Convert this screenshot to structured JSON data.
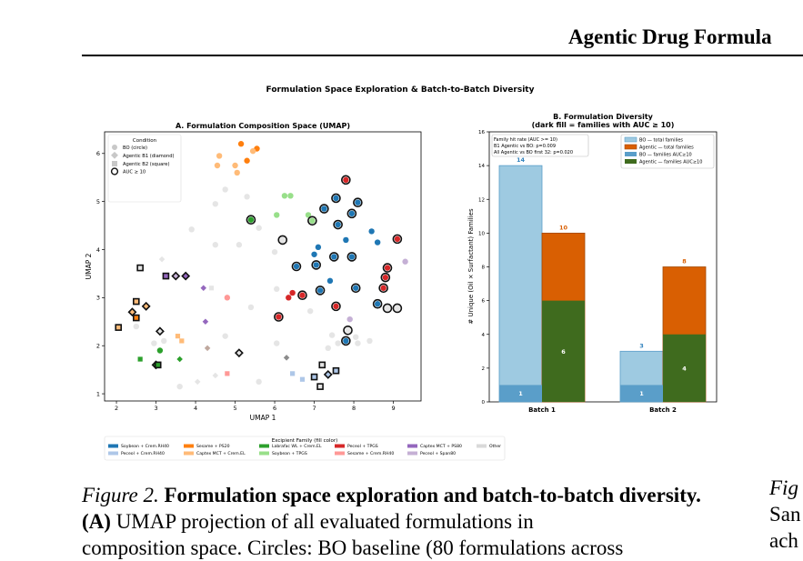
{
  "header": {
    "running_title": "Agentic Drug Formula"
  },
  "figure": {
    "suptitle": "Formulation Space Exploration & Batch-to-Batch Diversity",
    "legend": {
      "title": "Excipient Family (fill color)",
      "items": [
        {
          "label": "Soybean + Crem.RH40",
          "color": "#1f77b4"
        },
        {
          "label": "Peceol + Crem.RH40",
          "color": "#aec7e8"
        },
        {
          "label": "Sesame + PS20",
          "color": "#ff7f0e"
        },
        {
          "label": "Captex MCT + Crem.EL",
          "color": "#ffbb78"
        },
        {
          "label": "Labrafac WL + Crem.EL",
          "color": "#2ca02c"
        },
        {
          "label": "Soybean + TPGS",
          "color": "#98df8a"
        },
        {
          "label": "Peceol + TPGS",
          "color": "#d62728"
        },
        {
          "label": "Sesame + Crem.RH40",
          "color": "#ff9896"
        },
        {
          "label": "Captex MCT + PS80",
          "color": "#9467bd"
        },
        {
          "label": "Peceol + Span80",
          "color": "#c5b0d5"
        },
        {
          "label": "Other",
          "color": "#d9d9d9"
        }
      ]
    }
  },
  "chart_data": [
    {
      "type": "scatter",
      "title": "A. Formulation Composition Space (UMAP)",
      "xlabel": "UMAP 1",
      "ylabel": "UMAP 2",
      "xlim": [
        1.7,
        9.7
      ],
      "ylim": [
        0.85,
        6.45
      ],
      "xticks": [
        "2",
        "3",
        "4",
        "5",
        "6",
        "7",
        "8",
        "9"
      ],
      "yticks": [
        "1",
        "2",
        "3",
        "4",
        "5",
        "6"
      ],
      "legend": {
        "title": "Condition",
        "placement": "top-left",
        "entries": [
          "BO (circle)",
          "Agentic B1 (diamond)",
          "Agentic B2 (square)",
          "AUC ≥ 10"
        ]
      },
      "points": [
        {
          "x": 4.6,
          "y": 5.95,
          "m": "c",
          "c": "#ffbb78",
          "h": 0
        },
        {
          "x": 5.15,
          "y": 6.2,
          "m": "c",
          "c": "#ff7f0e",
          "h": 0
        },
        {
          "x": 5.55,
          "y": 6.1,
          "m": "c",
          "c": "#ff7f0e",
          "h": 0
        },
        {
          "x": 5.45,
          "y": 6.05,
          "m": "c",
          "c": "#ffbb78",
          "h": 0
        },
        {
          "x": 5.0,
          "y": 5.75,
          "m": "c",
          "c": "#ffbb78",
          "h": 0
        },
        {
          "x": 5.3,
          "y": 5.85,
          "m": "c",
          "c": "#ff7f0e",
          "h": 0
        },
        {
          "x": 4.55,
          "y": 5.75,
          "m": "c",
          "c": "#ffbb78",
          "h": 0
        },
        {
          "x": 5.05,
          "y": 5.6,
          "m": "c",
          "c": "#ffbb78",
          "h": 0
        },
        {
          "x": 4.75,
          "y": 5.25,
          "m": "c",
          "c": "#e5e5e5",
          "h": 0
        },
        {
          "x": 5.3,
          "y": 5.1,
          "m": "c",
          "c": "#e5e5e5",
          "h": 0
        },
        {
          "x": 4.5,
          "y": 4.95,
          "m": "c",
          "c": "#e5e5e5",
          "h": 0
        },
        {
          "x": 5.4,
          "y": 4.62,
          "m": "c",
          "c": "#2ca02c",
          "h": 1
        },
        {
          "x": 6.25,
          "y": 5.12,
          "m": "c",
          "c": "#98df8a",
          "h": 0
        },
        {
          "x": 6.4,
          "y": 5.12,
          "m": "c",
          "c": "#98df8a",
          "h": 0
        },
        {
          "x": 6.05,
          "y": 4.72,
          "m": "c",
          "c": "#98df8a",
          "h": 0
        },
        {
          "x": 6.85,
          "y": 4.72,
          "m": "c",
          "c": "#98df8a",
          "h": 0
        },
        {
          "x": 5.6,
          "y": 4.45,
          "m": "c",
          "c": "#e5e5e5",
          "h": 0
        },
        {
          "x": 3.9,
          "y": 4.42,
          "m": "c",
          "c": "#e5e5e5",
          "h": 0
        },
        {
          "x": 7.8,
          "y": 5.45,
          "m": "c",
          "c": "#d62728",
          "h": 1
        },
        {
          "x": 7.55,
          "y": 5.07,
          "m": "c",
          "c": "#1f77b4",
          "h": 1
        },
        {
          "x": 8.1,
          "y": 4.98,
          "m": "c",
          "c": "#1f77b4",
          "h": 1
        },
        {
          "x": 7.25,
          "y": 4.85,
          "m": "c",
          "c": "#1f77b4",
          "h": 1
        },
        {
          "x": 7.95,
          "y": 4.75,
          "m": "c",
          "c": "#1f77b4",
          "h": 1
        },
        {
          "x": 6.95,
          "y": 4.6,
          "m": "c",
          "c": "#98df8a",
          "h": 1
        },
        {
          "x": 7.6,
          "y": 4.52,
          "m": "c",
          "c": "#1f77b4",
          "h": 1
        },
        {
          "x": 8.45,
          "y": 4.38,
          "m": "c",
          "c": "#1f77b4",
          "h": 0
        },
        {
          "x": 6.2,
          "y": 4.2,
          "m": "c",
          "c": "#e5e5e5",
          "h": 1
        },
        {
          "x": 7.8,
          "y": 4.2,
          "m": "c",
          "c": "#1f77b4",
          "h": 0
        },
        {
          "x": 8.6,
          "y": 4.15,
          "m": "c",
          "c": "#1f77b4",
          "h": 0
        },
        {
          "x": 9.1,
          "y": 4.22,
          "m": "c",
          "c": "#d62728",
          "h": 1
        },
        {
          "x": 6.0,
          "y": 3.95,
          "m": "c",
          "c": "#e5e5e5",
          "h": 0
        },
        {
          "x": 7.1,
          "y": 4.05,
          "m": "c",
          "c": "#1f77b4",
          "h": 0
        },
        {
          "x": 7.0,
          "y": 3.9,
          "m": "c",
          "c": "#1f77b4",
          "h": 0
        },
        {
          "x": 6.55,
          "y": 3.65,
          "m": "c",
          "c": "#1f77b4",
          "h": 1
        },
        {
          "x": 7.5,
          "y": 3.85,
          "m": "c",
          "c": "#1f77b4",
          "h": 1
        },
        {
          "x": 7.95,
          "y": 3.85,
          "m": "c",
          "c": "#1f77b4",
          "h": 1
        },
        {
          "x": 7.05,
          "y": 3.68,
          "m": "c",
          "c": "#1f77b4",
          "h": 1
        },
        {
          "x": 8.85,
          "y": 3.62,
          "m": "c",
          "c": "#d62728",
          "h": 1
        },
        {
          "x": 9.3,
          "y": 3.75,
          "m": "c",
          "c": "#c5b0d5",
          "h": 0
        },
        {
          "x": 8.8,
          "y": 3.42,
          "m": "c",
          "c": "#d62728",
          "h": 1
        },
        {
          "x": 7.4,
          "y": 3.35,
          "m": "c",
          "c": "#1f77b4",
          "h": 0
        },
        {
          "x": 8.05,
          "y": 3.2,
          "m": "c",
          "c": "#1f77b4",
          "h": 1
        },
        {
          "x": 8.75,
          "y": 3.2,
          "m": "c",
          "c": "#d62728",
          "h": 1
        },
        {
          "x": 6.05,
          "y": 3.18,
          "m": "c",
          "c": "#e5e5e5",
          "h": 0
        },
        {
          "x": 6.7,
          "y": 3.05,
          "m": "c",
          "c": "#d62728",
          "h": 1
        },
        {
          "x": 7.15,
          "y": 3.15,
          "m": "c",
          "c": "#1f77b4",
          "h": 1
        },
        {
          "x": 6.45,
          "y": 3.1,
          "m": "c",
          "c": "#d62728",
          "h": 0
        },
        {
          "x": 6.35,
          "y": 3.0,
          "m": "c",
          "c": "#d62728",
          "h": 0
        },
        {
          "x": 8.6,
          "y": 2.87,
          "m": "c",
          "c": "#1f77b4",
          "h": 1
        },
        {
          "x": 9.1,
          "y": 2.78,
          "m": "c",
          "c": "#e5e5e5",
          "h": 1
        },
        {
          "x": 8.85,
          "y": 2.78,
          "m": "c",
          "c": "#e5e5e5",
          "h": 1
        },
        {
          "x": 7.55,
          "y": 2.82,
          "m": "c",
          "c": "#d62728",
          "h": 1
        },
        {
          "x": 6.9,
          "y": 2.72,
          "m": "c",
          "c": "#e5e5e5",
          "h": 0
        },
        {
          "x": 6.1,
          "y": 2.6,
          "m": "c",
          "c": "#d62728",
          "h": 1
        },
        {
          "x": 5.4,
          "y": 2.8,
          "m": "c",
          "c": "#e5e5e5",
          "h": 0
        },
        {
          "x": 7.9,
          "y": 2.55,
          "m": "c",
          "c": "#c5b0d5",
          "h": 0
        },
        {
          "x": 7.85,
          "y": 2.32,
          "m": "c",
          "c": "#e5e5e5",
          "h": 1
        },
        {
          "x": 7.45,
          "y": 2.22,
          "m": "c",
          "c": "#e5e5e5",
          "h": 0
        },
        {
          "x": 8.05,
          "y": 2.18,
          "m": "c",
          "c": "#e5e5e5",
          "h": 0
        },
        {
          "x": 7.8,
          "y": 2.1,
          "m": "c",
          "c": "#1f77b4",
          "h": 1
        },
        {
          "x": 8.1,
          "y": 2.05,
          "m": "c",
          "c": "#e5e5e5",
          "h": 0
        },
        {
          "x": 7.6,
          "y": 2.05,
          "m": "c",
          "c": "#e5e5e5",
          "h": 0
        },
        {
          "x": 8.4,
          "y": 2.1,
          "m": "c",
          "c": "#e5e5e5",
          "h": 0
        },
        {
          "x": 7.35,
          "y": 1.95,
          "m": "c",
          "c": "#e5e5e5",
          "h": 0
        },
        {
          "x": 6.05,
          "y": 2.05,
          "m": "c",
          "c": "#e5e5e5",
          "h": 0
        },
        {
          "x": 4.8,
          "y": 3.0,
          "m": "c",
          "c": "#ff9896",
          "h": 0
        },
        {
          "x": 4.75,
          "y": 2.2,
          "m": "c",
          "c": "#e5e5e5",
          "h": 0
        },
        {
          "x": 3.2,
          "y": 2.1,
          "m": "c",
          "c": "#e5e5e5",
          "h": 0
        },
        {
          "x": 2.5,
          "y": 2.4,
          "m": "c",
          "c": "#e5e5e5",
          "h": 0
        },
        {
          "x": 3.1,
          "y": 1.9,
          "m": "c",
          "c": "#2ca02c",
          "h": 0
        },
        {
          "x": 2.95,
          "y": 2.05,
          "m": "c",
          "c": "#e5e5e5",
          "h": 0
        },
        {
          "x": 4.5,
          "y": 4.1,
          "m": "c",
          "c": "#e5e5e5",
          "h": 0
        },
        {
          "x": 5.1,
          "y": 4.1,
          "m": "c",
          "c": "#e5e5e5",
          "h": 0
        },
        {
          "x": 5.6,
          "y": 1.25,
          "m": "c",
          "c": "#e5e5e5",
          "h": 0
        },
        {
          "x": 3.6,
          "y": 1.15,
          "m": "c",
          "c": "#e5e5e5",
          "h": 0
        },
        {
          "x": 3.15,
          "y": 3.8,
          "m": "d",
          "c": "#e5e5e5",
          "h": 0
        },
        {
          "x": 3.5,
          "y": 3.45,
          "m": "d",
          "c": "#c5b0d5",
          "h": 1
        },
        {
          "x": 3.75,
          "y": 3.45,
          "m": "d",
          "c": "#9467bd",
          "h": 1
        },
        {
          "x": 4.2,
          "y": 3.2,
          "m": "d",
          "c": "#9467bd",
          "h": 0
        },
        {
          "x": 4.25,
          "y": 2.5,
          "m": "d",
          "c": "#9467bd",
          "h": 0
        },
        {
          "x": 2.75,
          "y": 2.82,
          "m": "d",
          "c": "#ffbb78",
          "h": 1
        },
        {
          "x": 2.4,
          "y": 2.7,
          "m": "d",
          "c": "#ffbb78",
          "h": 1
        },
        {
          "x": 3.1,
          "y": 2.3,
          "m": "d",
          "c": "#e5e5e5",
          "h": 1
        },
        {
          "x": 4.3,
          "y": 1.95,
          "m": "d",
          "c": "#bfa89e",
          "h": 0
        },
        {
          "x": 5.1,
          "y": 1.85,
          "m": "d",
          "c": "#e5e5e5",
          "h": 1
        },
        {
          "x": 3.0,
          "y": 1.6,
          "m": "d",
          "c": "#2ca02c",
          "h": 1
        },
        {
          "x": 3.6,
          "y": 1.72,
          "m": "d",
          "c": "#2ca02c",
          "h": 0
        },
        {
          "x": 4.05,
          "y": 1.25,
          "m": "d",
          "c": "#e5e5e5",
          "h": 0
        },
        {
          "x": 4.5,
          "y": 1.38,
          "m": "d",
          "c": "#e5e5e5",
          "h": 0
        },
        {
          "x": 6.3,
          "y": 1.75,
          "m": "d",
          "c": "#8c8c8c",
          "h": 0
        },
        {
          "x": 7.35,
          "y": 1.4,
          "m": "d",
          "c": "#aec7e8",
          "h": 1
        },
        {
          "x": 2.6,
          "y": 3.62,
          "m": "s",
          "c": "#e5e5e5",
          "h": 1
        },
        {
          "x": 3.25,
          "y": 3.45,
          "m": "s",
          "c": "#9467bd",
          "h": 1
        },
        {
          "x": 4.4,
          "y": 3.2,
          "m": "s",
          "c": "#e5e5e5",
          "h": 0
        },
        {
          "x": 2.5,
          "y": 2.92,
          "m": "s",
          "c": "#ffbb78",
          "h": 1
        },
        {
          "x": 2.5,
          "y": 2.58,
          "m": "s",
          "c": "#ff7f0e",
          "h": 1
        },
        {
          "x": 2.05,
          "y": 2.38,
          "m": "s",
          "c": "#ffbb78",
          "h": 1
        },
        {
          "x": 3.55,
          "y": 2.2,
          "m": "s",
          "c": "#ffbb78",
          "h": 0
        },
        {
          "x": 3.65,
          "y": 2.1,
          "m": "s",
          "c": "#ffbb78",
          "h": 0
        },
        {
          "x": 2.6,
          "y": 1.72,
          "m": "s",
          "c": "#2ca02c",
          "h": 0
        },
        {
          "x": 3.05,
          "y": 1.6,
          "m": "s",
          "c": "#2ca02c",
          "h": 1
        },
        {
          "x": 4.8,
          "y": 1.42,
          "m": "s",
          "c": "#ff9896",
          "h": 0
        },
        {
          "x": 6.45,
          "y": 1.42,
          "m": "s",
          "c": "#aec7e8",
          "h": 0
        },
        {
          "x": 7.0,
          "y": 1.35,
          "m": "s",
          "c": "#aec7e8",
          "h": 1
        },
        {
          "x": 7.2,
          "y": 1.6,
          "m": "s",
          "c": "#e5e5e5",
          "h": 1
        },
        {
          "x": 7.55,
          "y": 1.48,
          "m": "s",
          "c": "#aec7e8",
          "h": 1
        },
        {
          "x": 7.15,
          "y": 1.15,
          "m": "s",
          "c": "#e5e5e5",
          "h": 1
        },
        {
          "x": 6.7,
          "y": 1.3,
          "m": "s",
          "c": "#aec7e8",
          "h": 0
        }
      ]
    },
    {
      "type": "bar",
      "title_lines": [
        "B. Formulation Diversity",
        "(dark fill = families with AUC ≥ 10)"
      ],
      "xlabel": "",
      "ylabel": "# Unique (Oil × Surfactant) Families",
      "ylim": [
        0,
        16
      ],
      "yticks": [
        "0",
        "2",
        "4",
        "6",
        "8",
        "10",
        "12",
        "14",
        "16"
      ],
      "categories": [
        "Batch 1",
        "Batch 2"
      ],
      "series": [
        {
          "name": "BO — total families",
          "values": [
            14,
            3
          ],
          "color": "#9ecae1",
          "edge": "#5a9ec9",
          "label_color": "#3182bd"
        },
        {
          "name": "Agentic — total families",
          "values": [
            10,
            8
          ],
          "color": "#d95f02",
          "edge": "#a44a05",
          "label_color": "#d95f02"
        },
        {
          "name": "BO — families AUC≥10",
          "values": [
            1,
            1
          ],
          "color": "#5a9ec9"
        },
        {
          "name": "Agentic — families AUC≥10",
          "values": [
            6,
            4
          ],
          "color": "#3f6b1e"
        }
      ],
      "annotation": [
        "Family hit rate (AUC >= 10)",
        "B1 Agentic vs BO: p=0.009",
        "All Agentic vs BO first 32: p=0.020"
      ],
      "legend_placement": "top-right"
    }
  ],
  "caption": {
    "label": "Figure 2.",
    "title": "Formulation space exploration and batch-to-batch diversity.",
    "panel": "(A)",
    "line1_rest": "UMAP projection of all evaluated formulations in",
    "line3": "composition space. Circles: BO baseline (80 formulations across"
  },
  "side_caption": {
    "line1": "Fig",
    "line2": "San",
    "line3": "ach"
  }
}
